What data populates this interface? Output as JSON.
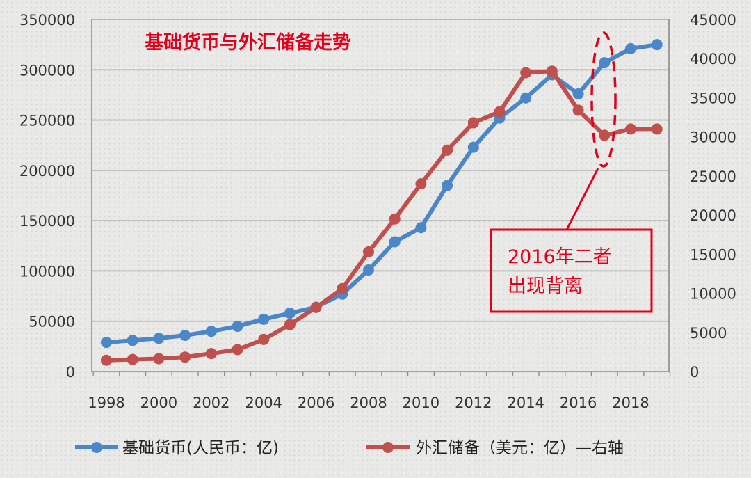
{
  "chart_data": {
    "type": "line",
    "title": "基础货币与外汇储备走势",
    "x": [
      1998,
      1999,
      2000,
      2001,
      2002,
      2003,
      2004,
      2005,
      2006,
      2007,
      2008,
      2009,
      2010,
      2011,
      2012,
      2013,
      2014,
      2015,
      2016,
      2017,
      2018,
      2019
    ],
    "x_tick_labels": [
      "1998",
      "2000",
      "2002",
      "2004",
      "2006",
      "2008",
      "2010",
      "2012",
      "2014",
      "2016",
      "2018"
    ],
    "y_left_ticks": [
      "0",
      "50000",
      "100000",
      "150000",
      "200000",
      "250000",
      "300000",
      "350000"
    ],
    "y_right_ticks": [
      "0",
      "5000",
      "10000",
      "15000",
      "20000",
      "25000",
      "30000",
      "35000",
      "40000",
      "45000"
    ],
    "ylim_left": [
      0,
      350000
    ],
    "ylim_right": [
      0,
      45000
    ],
    "series": [
      {
        "name": "基础货币(人民币：亿)",
        "axis": "left",
        "color": "#4a86c8",
        "values": [
          29000,
          31000,
          33000,
          36000,
          40000,
          45000,
          52000,
          58000,
          64000,
          77000,
          101000,
          129000,
          143000,
          185000,
          223000,
          252000,
          272000,
          295000,
          276000,
          307000,
          321000,
          325000
        ]
      },
      {
        "name": "外汇储备（美元：亿）—右轴",
        "axis": "right",
        "color": "#c0504d",
        "values": [
          1450,
          1550,
          1650,
          1850,
          2300,
          2800,
          4100,
          6000,
          8200,
          10600,
          15300,
          19500,
          24000,
          28300,
          31800,
          33200,
          38200,
          38400,
          33400,
          30200,
          31000,
          31000
        ]
      }
    ],
    "grid": true,
    "legend": "bottom",
    "annotation": {
      "line1": "2016年二者",
      "line2": "出现背离",
      "color": "#e3001b"
    }
  }
}
